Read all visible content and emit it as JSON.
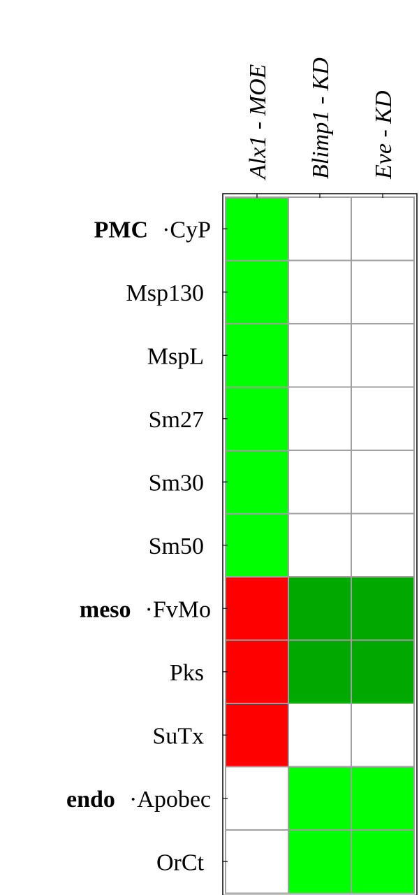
{
  "chart_data": {
    "type": "heatmap",
    "columns": [
      "Alx1 - MOE",
      "Blimp1 - KD",
      "Eve - KD"
    ],
    "rows": [
      "CyP",
      "Msp130",
      "MspL",
      "Sm27",
      "Sm30",
      "Sm50",
      "FvMo",
      "Pks",
      "SuTx",
      "Apobec",
      "OrCt"
    ],
    "groups": [
      {
        "label": "PMC",
        "start_row": 0
      },
      {
        "label": "meso",
        "start_row": 6
      },
      {
        "label": "endo",
        "start_row": 9
      }
    ],
    "cells": [
      [
        "up",
        "none",
        "none"
      ],
      [
        "up",
        "none",
        "none"
      ],
      [
        "up",
        "none",
        "none"
      ],
      [
        "up",
        "none",
        "none"
      ],
      [
        "up",
        "none",
        "none"
      ],
      [
        "up",
        "none",
        "none"
      ],
      [
        "down",
        "up-weak",
        "up-weak"
      ],
      [
        "down",
        "up-weak",
        "up-weak"
      ],
      [
        "down",
        "none",
        "none"
      ],
      [
        "none",
        "up",
        "up"
      ],
      [
        "none",
        "up",
        "up"
      ]
    ],
    "colors": {
      "up": "#00ff00",
      "up-weak": "#00a800",
      "down": "#ff0000",
      "none": "#ffffff",
      "gridline": "#a0a0a0",
      "frame": "#000000"
    }
  }
}
